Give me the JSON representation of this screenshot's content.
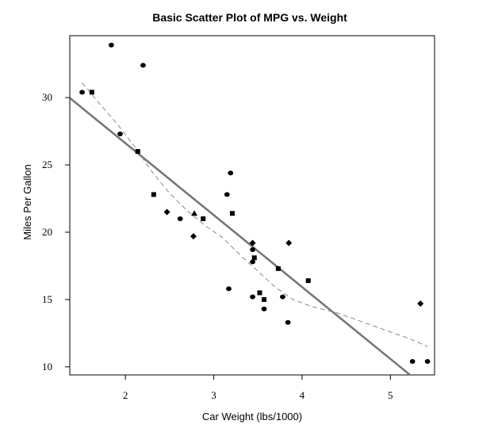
{
  "chart_data": {
    "type": "scatter",
    "title": "Basic Scatter Plot of MPG vs. Weight",
    "xlabel": "Car Weight (lbs/1000)",
    "ylabel": "Miles Per Gallon",
    "xlim": [
      1.37,
      5.5
    ],
    "ylim": [
      9.4,
      34.6
    ],
    "x_ticks": [
      2,
      3,
      4,
      5
    ],
    "y_ticks": [
      10,
      15,
      20,
      25,
      30
    ],
    "grid": false,
    "legend": "none",
    "point_color": "#000000",
    "line_color": "#777777",
    "points": [
      {
        "x": 1.51,
        "y": 30.4,
        "shape": "circle"
      },
      {
        "x": 1.62,
        "y": 30.4,
        "shape": "square"
      },
      {
        "x": 1.84,
        "y": 33.9,
        "shape": "circle"
      },
      {
        "x": 1.94,
        "y": 27.3,
        "shape": "circle"
      },
      {
        "x": 2.14,
        "y": 26.0,
        "shape": "square"
      },
      {
        "x": 2.2,
        "y": 32.4,
        "shape": "circle"
      },
      {
        "x": 2.32,
        "y": 22.8,
        "shape": "square"
      },
      {
        "x": 2.47,
        "y": 21.5,
        "shape": "diamond"
      },
      {
        "x": 2.62,
        "y": 21.0,
        "shape": "circle"
      },
      {
        "x": 2.77,
        "y": 19.7,
        "shape": "diamond"
      },
      {
        "x": 2.78,
        "y": 21.4,
        "shape": "triangle"
      },
      {
        "x": 2.88,
        "y": 21.0,
        "shape": "square"
      },
      {
        "x": 3.15,
        "y": 22.8,
        "shape": "circle"
      },
      {
        "x": 3.17,
        "y": 15.8,
        "shape": "circle"
      },
      {
        "x": 3.19,
        "y": 24.4,
        "shape": "circle"
      },
      {
        "x": 3.21,
        "y": 21.4,
        "shape": "square"
      },
      {
        "x": 3.44,
        "y": 18.7,
        "shape": "circle"
      },
      {
        "x": 3.44,
        "y": 19.2,
        "shape": "diamond"
      },
      {
        "x": 3.44,
        "y": 17.8,
        "shape": "circle"
      },
      {
        "x": 3.44,
        "y": 15.2,
        "shape": "circle"
      },
      {
        "x": 3.46,
        "y": 18.1,
        "shape": "square"
      },
      {
        "x": 3.52,
        "y": 15.5,
        "shape": "square"
      },
      {
        "x": 3.57,
        "y": 14.3,
        "shape": "circle"
      },
      {
        "x": 3.57,
        "y": 15.0,
        "shape": "square"
      },
      {
        "x": 3.73,
        "y": 17.3,
        "shape": "square"
      },
      {
        "x": 3.78,
        "y": 15.2,
        "shape": "circle"
      },
      {
        "x": 3.84,
        "y": 13.3,
        "shape": "circle"
      },
      {
        "x": 3.85,
        "y": 19.2,
        "shape": "diamond"
      },
      {
        "x": 4.07,
        "y": 16.4,
        "shape": "square"
      },
      {
        "x": 5.25,
        "y": 10.4,
        "shape": "circle"
      },
      {
        "x": 5.34,
        "y": 14.7,
        "shape": "diamond"
      },
      {
        "x": 5.42,
        "y": 10.4,
        "shape": "circle"
      }
    ],
    "regression_line": {
      "intercept": 37.29,
      "slope": -5.34
    },
    "lowess_curve": [
      {
        "x": 1.51,
        "y": 31.1
      },
      {
        "x": 1.7,
        "y": 29.6
      },
      {
        "x": 1.9,
        "y": 28.1
      },
      {
        "x": 2.1,
        "y": 26.4
      },
      {
        "x": 2.3,
        "y": 24.5
      },
      {
        "x": 2.5,
        "y": 22.9
      },
      {
        "x": 2.7,
        "y": 21.6
      },
      {
        "x": 2.9,
        "y": 20.5
      },
      {
        "x": 3.1,
        "y": 19.6
      },
      {
        "x": 3.3,
        "y": 18.3
      },
      {
        "x": 3.5,
        "y": 17.1
      },
      {
        "x": 3.7,
        "y": 15.9
      },
      {
        "x": 3.9,
        "y": 15.0
      },
      {
        "x": 4.1,
        "y": 14.5
      },
      {
        "x": 4.4,
        "y": 14.0
      },
      {
        "x": 4.7,
        "y": 13.3
      },
      {
        "x": 5.0,
        "y": 12.6
      },
      {
        "x": 5.25,
        "y": 12.0
      },
      {
        "x": 5.42,
        "y": 11.5
      }
    ]
  }
}
